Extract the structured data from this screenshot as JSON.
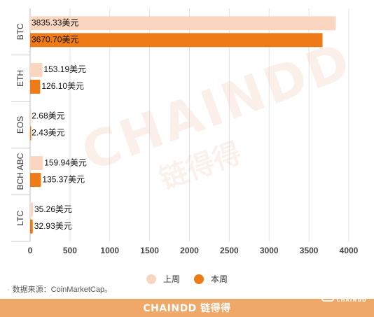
{
  "chart_data": {
    "type": "bar",
    "orientation": "horizontal",
    "categories": [
      "BTC",
      "ETH",
      "EOS",
      "BCH ABC",
      "LTC"
    ],
    "series": [
      {
        "name": "上周",
        "color": "#fad5c0",
        "values": [
          3835.33,
          153.19,
          2.68,
          159.94,
          35.26
        ]
      },
      {
        "name": "本周",
        "color": "#ee7b17",
        "values": [
          3670.7,
          126.1,
          2.43,
          135.37,
          32.93
        ]
      }
    ],
    "data_labels": {
      "上周": [
        "3835.33美元",
        "153.19美元",
        "2.68美元",
        "159.94美元",
        "35.26美元"
      ],
      "本周": [
        "3670.70美元",
        "126.10美元",
        "2.43美元",
        "135.37美元",
        "32.93美元"
      ]
    },
    "xlim": [
      0,
      4000
    ],
    "xticks": [
      0,
      500,
      1000,
      1500,
      2000,
      2500,
      3000,
      3500,
      4000
    ],
    "grid": true,
    "legend_position": "bottom"
  },
  "legend": {
    "items": [
      "上周",
      "本周"
    ]
  },
  "source": "数据来源：CoinMarketCap。",
  "footer": {
    "brand": "CHAINDD 链得得"
  },
  "watermark": {
    "text": "CHAINDD",
    "cn": "链得得"
  },
  "corner_logo": {
    "text": "链得得",
    "sub": "CHAINDD"
  }
}
